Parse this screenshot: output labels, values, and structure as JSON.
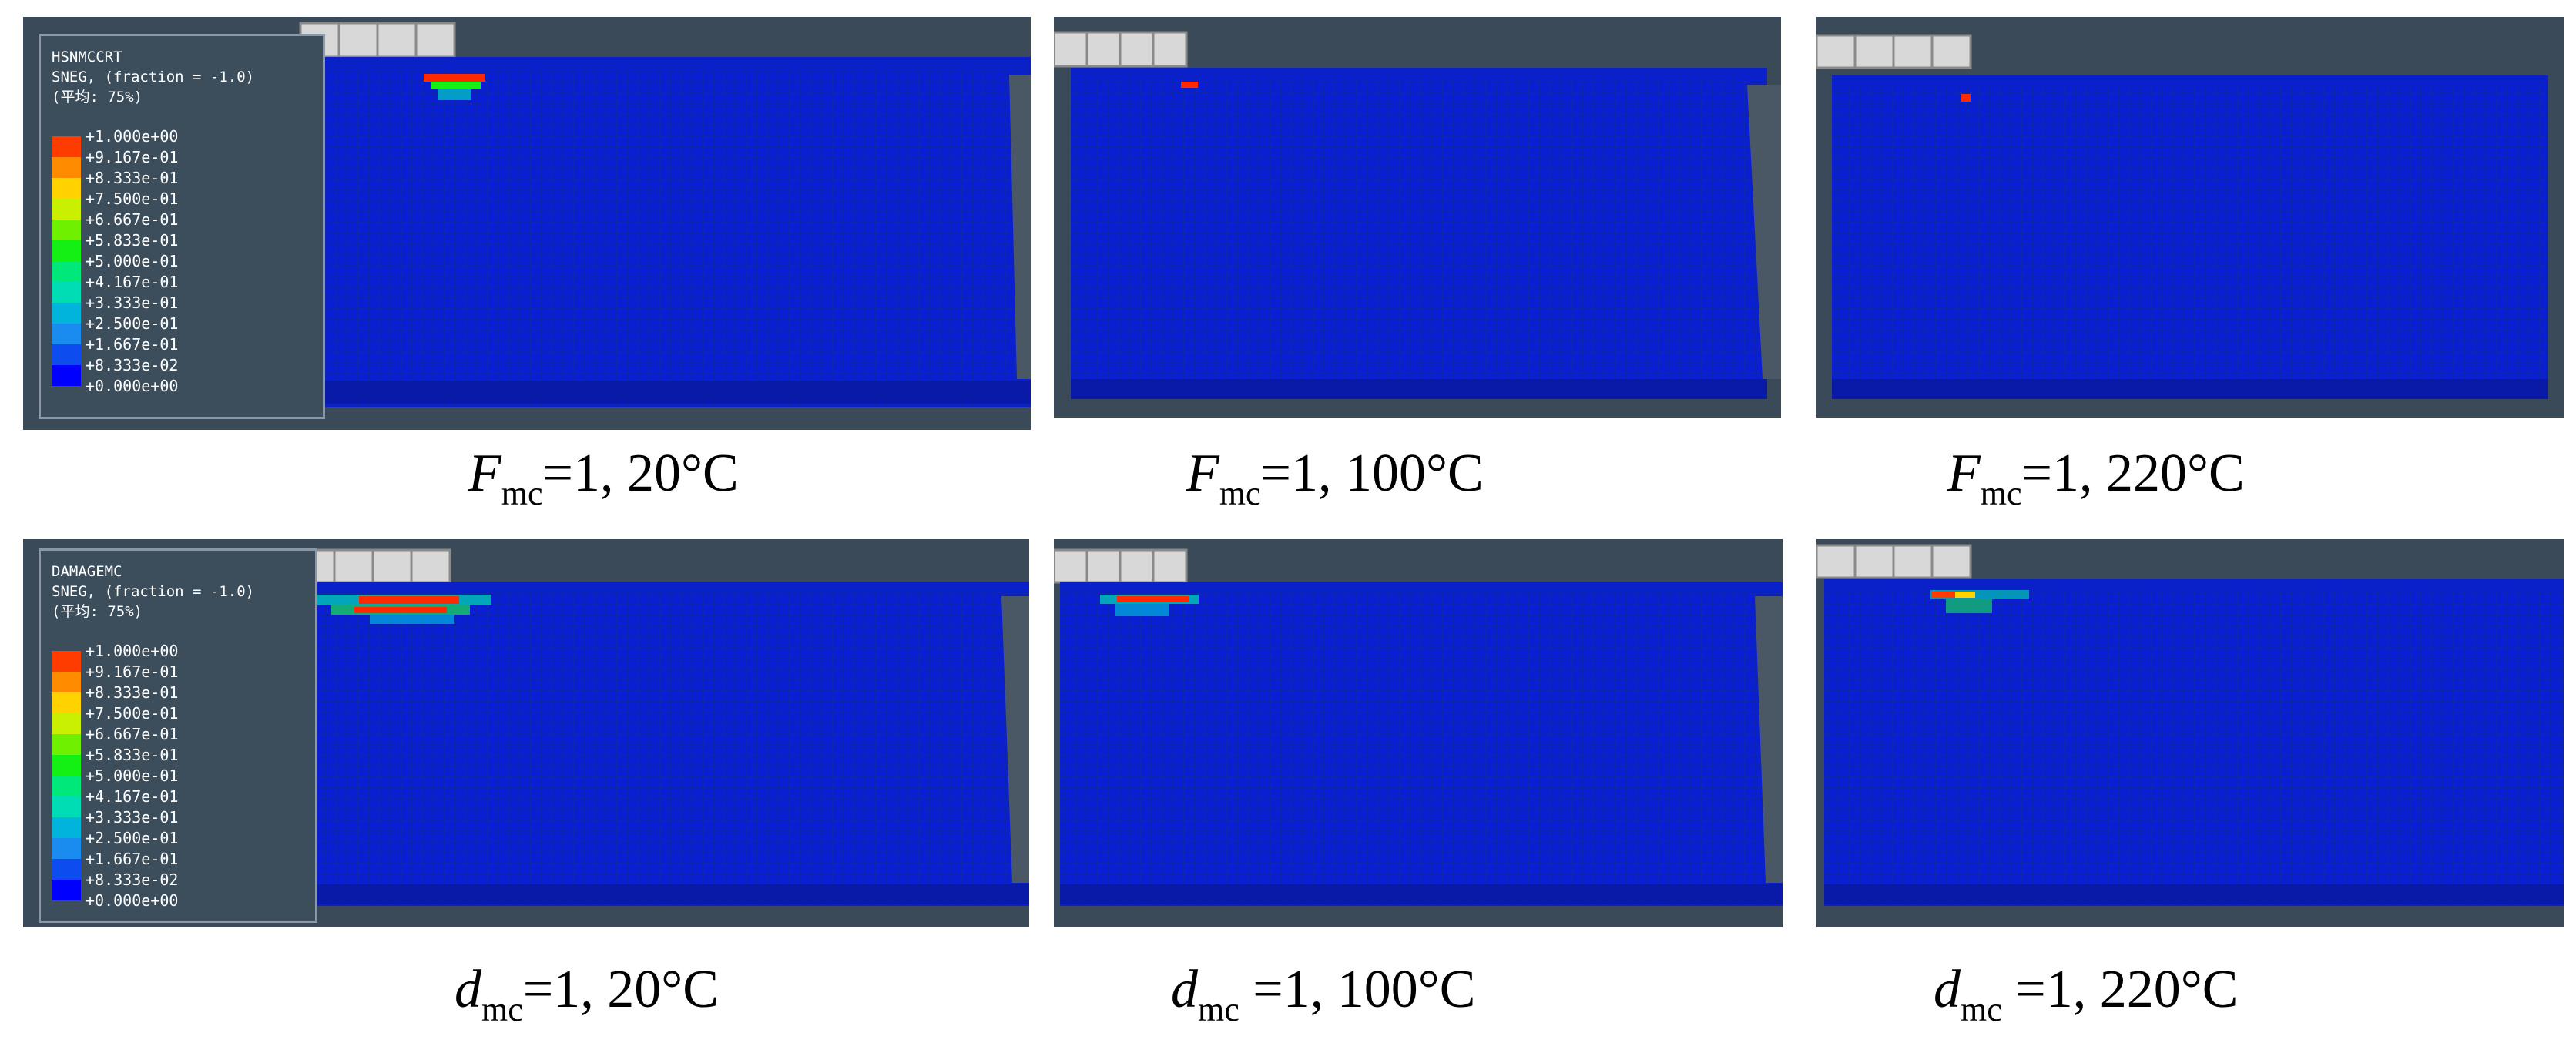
{
  "legend_scale": {
    "colors": [
      "#0000ff",
      "#0d4df0",
      "#1a8cf0",
      "#00b4dc",
      "#00dcb4",
      "#00e87a",
      "#14f014",
      "#6ef000",
      "#c8f000",
      "#ffd200",
      "#ff8c00",
      "#ff3c00"
    ],
    "ticks": [
      "+1.000e+00",
      "+9.167e-01",
      "+8.333e-01",
      "+7.500e-01",
      "+6.667e-01",
      "+5.833e-01",
      "+5.000e-01",
      "+4.167e-01",
      "+3.333e-01",
      "+2.500e-01",
      "+1.667e-01",
      "+8.333e-02",
      "+0.000e+00"
    ]
  },
  "rows": [
    {
      "legend": {
        "variable": "HSNMCCRT",
        "section": "SNEG, (fraction = -1.0)",
        "averaging": "(平均: 75%)"
      },
      "captions": [
        {
          "var": "F",
          "sub": "mc",
          "rest": "=1, 20°C"
        },
        {
          "var": "F",
          "sub": "mc",
          "rest": "=1, 100°C"
        },
        {
          "var": "F",
          "sub": "mc",
          "rest": "=1, 220°C"
        }
      ]
    },
    {
      "legend": {
        "variable": "DAMAGEMC",
        "section": "SNEG, (fraction = -1.0)",
        "averaging": "(平均: 75%)"
      },
      "captions": [
        {
          "var": "d",
          "sub": "mc",
          "rest": "=1, 20°C"
        },
        {
          "var": "d",
          "sub": "mc",
          " rest": "",
          "rest": " =1, 100°C"
        },
        {
          "var": "d",
          "sub": "mc",
          "rest": " =1, 220°C"
        }
      ]
    }
  ],
  "colors": {
    "background": "#3a4a58",
    "mesh_blue": "#0a1ed2",
    "mesh_line": "#1028a8",
    "loading_plate": "#d8d8d8"
  }
}
